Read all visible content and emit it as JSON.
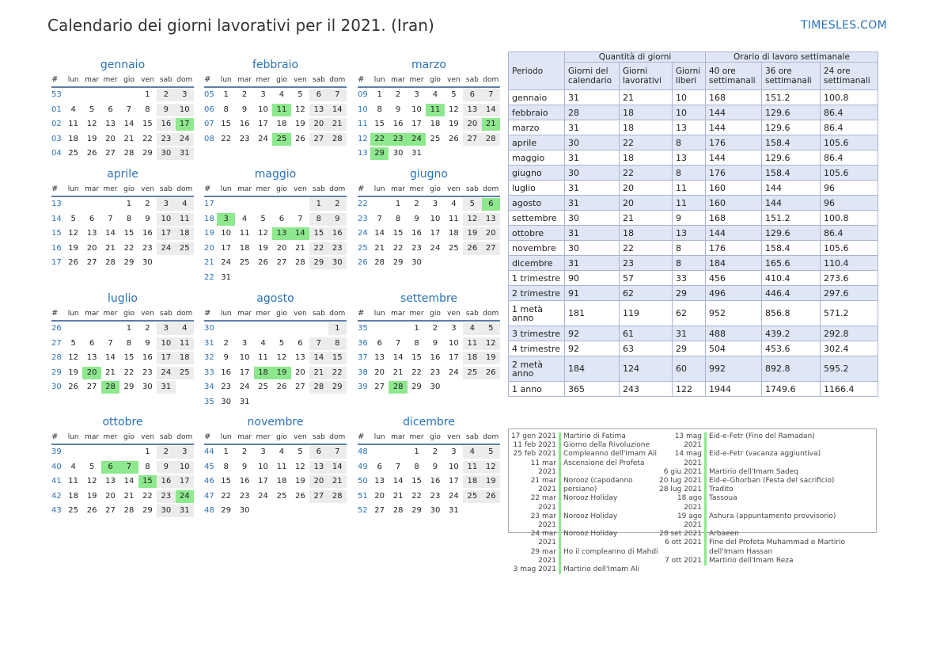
{
  "header": {
    "title": "Calendario dei giorni lavorativi per il 2021. (Iran)",
    "brand": "TIMESLES.COM"
  },
  "day_headers": [
    "#",
    "lun",
    "mar",
    "mer",
    "gio",
    "ven",
    "sab",
    "dom"
  ],
  "colors": {
    "accent": "#2a72b5",
    "holiday": "#8ee88e",
    "weekend": "#ececec"
  },
  "months": [
    {
      "name": "gennaio",
      "weeks": [
        53,
        1,
        2,
        3,
        4
      ],
      "offset": 4,
      "days": 31,
      "holidays": [
        17
      ]
    },
    {
      "name": "febbraio",
      "weeks": [
        5,
        6,
        7,
        8
      ],
      "offset": 0,
      "days": 28,
      "holidays": [
        11,
        25
      ]
    },
    {
      "name": "marzo",
      "weeks": [
        9,
        10,
        11,
        12,
        13
      ],
      "offset": 0,
      "days": 31,
      "holidays": [
        11,
        21,
        22,
        23,
        24,
        29
      ]
    },
    {
      "name": "aprile",
      "weeks": [
        13,
        14,
        15,
        16,
        17
      ],
      "offset": 3,
      "days": 30,
      "holidays": []
    },
    {
      "name": "maggio",
      "weeks": [
        17,
        18,
        19,
        20,
        21,
        22
      ],
      "offset": 5,
      "days": 31,
      "holidays": [
        3,
        13,
        14
      ]
    },
    {
      "name": "giugno",
      "weeks": [
        22,
        23,
        24,
        25,
        26
      ],
      "offset": 1,
      "days": 30,
      "holidays": [
        6
      ]
    },
    {
      "name": "luglio",
      "weeks": [
        26,
        27,
        28,
        29,
        30
      ],
      "offset": 3,
      "days": 31,
      "holidays": [
        20,
        28
      ]
    },
    {
      "name": "agosto",
      "weeks": [
        30,
        31,
        32,
        33,
        34,
        35
      ],
      "offset": 6,
      "days": 31,
      "holidays": [
        18,
        19
      ]
    },
    {
      "name": "settembre",
      "weeks": [
        35,
        36,
        37,
        38,
        39
      ],
      "offset": 2,
      "days": 30,
      "holidays": [
        28
      ]
    },
    {
      "name": "ottobre",
      "weeks": [
        39,
        40,
        41,
        42,
        43
      ],
      "offset": 4,
      "days": 31,
      "holidays": [
        6,
        7,
        15,
        24
      ]
    },
    {
      "name": "novembre",
      "weeks": [
        44,
        45,
        46,
        47,
        48
      ],
      "offset": 0,
      "days": 30,
      "holidays": []
    },
    {
      "name": "dicembre",
      "weeks": [
        48,
        49,
        50,
        51,
        52
      ],
      "offset": 2,
      "days": 31,
      "holidays": []
    }
  ],
  "summary": {
    "period_label": "Periodo",
    "group1": "Quantità di giorni",
    "group2": "Orario di lavoro settimanale",
    "sub": [
      "Giorni del calendario",
      "Giorni lavorativi",
      "Giorni liberi",
      "40 ore settimanali",
      "36 ore settimanali",
      "24 ore settimanali"
    ],
    "rows": [
      [
        "gennaio",
        "31",
        "21",
        "10",
        "168",
        "151.2",
        "100.8"
      ],
      [
        "febbraio",
        "28",
        "18",
        "10",
        "144",
        "129.6",
        "86.4"
      ],
      [
        "marzo",
        "31",
        "18",
        "13",
        "144",
        "129.6",
        "86.4"
      ],
      [
        "aprile",
        "30",
        "22",
        "8",
        "176",
        "158.4",
        "105.6"
      ],
      [
        "maggio",
        "31",
        "18",
        "13",
        "144",
        "129.6",
        "86.4"
      ],
      [
        "giugno",
        "30",
        "22",
        "8",
        "176",
        "158.4",
        "105.6"
      ],
      [
        "luglio",
        "31",
        "20",
        "11",
        "160",
        "144",
        "96"
      ],
      [
        "agosto",
        "31",
        "20",
        "11",
        "160",
        "144",
        "96"
      ],
      [
        "settembre",
        "30",
        "21",
        "9",
        "168",
        "151.2",
        "100.8"
      ],
      [
        "ottobre",
        "31",
        "18",
        "13",
        "144",
        "129.6",
        "86.4"
      ],
      [
        "novembre",
        "30",
        "22",
        "8",
        "176",
        "158.4",
        "105.6"
      ],
      [
        "dicembre",
        "31",
        "23",
        "8",
        "184",
        "165.6",
        "110.4"
      ],
      [
        "1 trimestre",
        "90",
        "57",
        "33",
        "456",
        "410.4",
        "273.6"
      ],
      [
        "2 trimestre",
        "91",
        "62",
        "29",
        "496",
        "446.4",
        "297.6"
      ],
      [
        "1 metà anno",
        "181",
        "119",
        "62",
        "952",
        "856.8",
        "571.2"
      ],
      [
        "3 trimestre",
        "92",
        "61",
        "31",
        "488",
        "439.2",
        "292.8"
      ],
      [
        "4 trimestre",
        "92",
        "63",
        "29",
        "504",
        "453.6",
        "302.4"
      ],
      [
        "2 metà anno",
        "184",
        "124",
        "60",
        "992",
        "892.8",
        "595.2"
      ],
      [
        "1 anno",
        "365",
        "243",
        "122",
        "1944",
        "1749.6",
        "1166.4"
      ]
    ]
  },
  "holidays_left": [
    [
      "17 gen 2021",
      "Martirio di Fatima"
    ],
    [
      "11 feb 2021",
      "Giorno della Rivoluzione"
    ],
    [
      "25 feb 2021",
      "Compleanno dell'Imam Ali"
    ],
    [
      "11 mar 2021",
      "Ascensione del Profeta"
    ],
    [
      "21 mar 2021",
      "Norooz (capodanno persiano)"
    ],
    [
      "22 mar 2021",
      "Norooz Holiday"
    ],
    [
      "23 mar 2021",
      "Norooz Holiday"
    ],
    [
      "24 mar 2021",
      "Norooz Holiday"
    ],
    [
      "29 mar 2021",
      "Ho il compleanno di Mahdi"
    ],
    [
      "3 mag 2021",
      "Martirio dell'Imam Ali"
    ]
  ],
  "holidays_right": [
    [
      "13 mag 2021",
      "Eid-e-Fetr (Fine del Ramadan)"
    ],
    [
      "14 mag 2021",
      "Eid-e-Fetr (vacanza aggiuntiva)"
    ],
    [
      "6 giu 2021",
      "Martirio dell'Imam Sadeq"
    ],
    [
      "20 lug 2021",
      "Eid-e-Ghorban (Festa del sacrificio)"
    ],
    [
      "28 lug 2021",
      "Tradito"
    ],
    [
      "18 ago 2021",
      "Tassoua"
    ],
    [
      "19 ago 2021",
      "Ashura (appuntamento provvisorio)"
    ],
    [
      "28 set 2021",
      "Arbaeen"
    ],
    [
      "6 ott 2021",
      "Fine del Profeta Muhammad e Martirio dell'Imam Hassan"
    ],
    [
      "7 ott 2021",
      "Martirio dell'Imam Reza"
    ]
  ]
}
